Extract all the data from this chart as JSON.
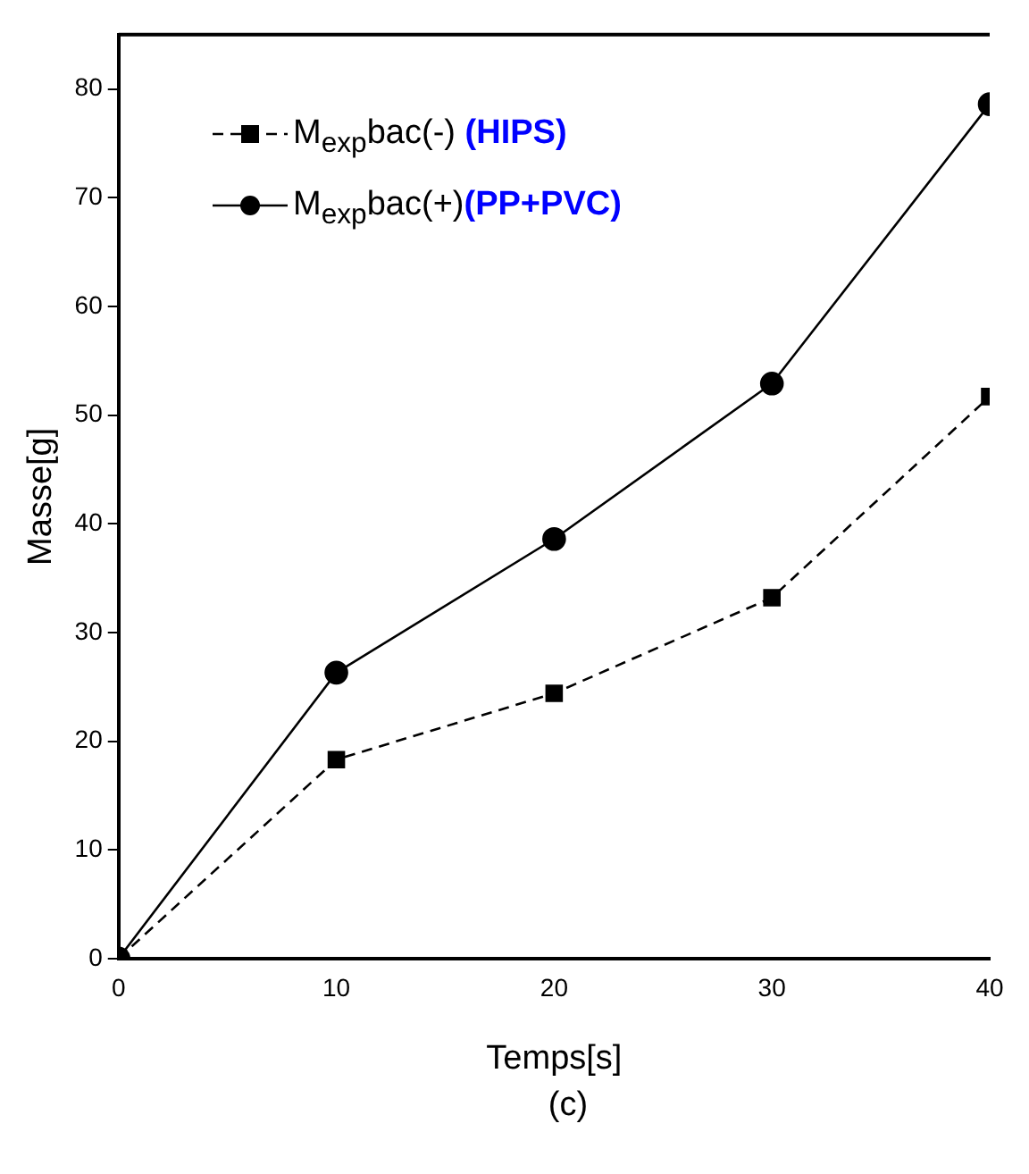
{
  "chart_data": {
    "type": "line",
    "xlabel": "Temps[s]",
    "ylabel": "Masse[g]",
    "annotations": [
      "(c)"
    ],
    "x": [
      0,
      10,
      20,
      30,
      40
    ],
    "xlim": [
      0,
      40
    ],
    "xticks": [
      0,
      10,
      20,
      30,
      40
    ],
    "ylim": [
      0,
      85
    ],
    "yticks": [
      0,
      10,
      20,
      30,
      40,
      50,
      60,
      70,
      80
    ],
    "grid": false,
    "legend": "top left",
    "series": [
      {
        "name": "M$_{exp}$bac(-) (HIPS)",
        "color": "#000000",
        "marker": "square",
        "line_style": "dashed",
        "values": [
          0,
          18.3,
          24.4,
          33.2,
          51.7
        ]
      },
      {
        "name": "M$_{exp}$bac(+)(PP+PVC)",
        "color": "#000000",
        "marker": "circle",
        "line_style": "solid",
        "values": [
          0,
          26.3,
          38.6,
          52.9,
          78.6
        ]
      }
    ]
  }
}
